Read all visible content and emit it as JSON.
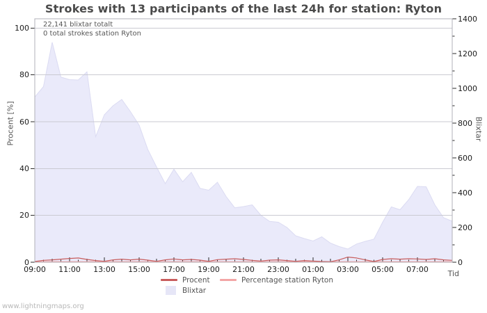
{
  "watermark": "www.lightningmaps.org",
  "chart_data": {
    "type": "area",
    "title": "Strokes with 13 participants of the last 24h for station: Ryton",
    "annotations": [
      "22,141 blixtar totalt",
      "0 total strokes station Ryton"
    ],
    "xlabel": "Tid",
    "ylabel_left": "Procent  [%]",
    "ylabel_right": "Blixtar",
    "x_tick_labels": [
      "09:00",
      "11:00",
      "13:00",
      "15:00",
      "17:00",
      "19:00",
      "21:00",
      "23:00",
      "01:00",
      "03:00",
      "05:00",
      "07:00"
    ],
    "y_left": {
      "min": 0,
      "max": 100,
      "ticks": [
        0,
        20,
        40,
        60,
        80,
        100
      ]
    },
    "y_right": {
      "min": 0,
      "max": 1400,
      "ticks": [
        0,
        200,
        400,
        600,
        800,
        1000,
        1200,
        1400
      ],
      "minor_step": 100
    },
    "grid": "horizontal",
    "legend_position": "bottom",
    "times": [
      "09:00",
      "09:30",
      "10:00",
      "10:30",
      "11:00",
      "11:30",
      "12:00",
      "12:30",
      "13:00",
      "13:30",
      "14:00",
      "14:30",
      "15:00",
      "15:30",
      "16:00",
      "16:30",
      "17:00",
      "17:30",
      "18:00",
      "18:30",
      "19:00",
      "19:30",
      "20:00",
      "20:30",
      "21:00",
      "21:30",
      "22:00",
      "22:30",
      "23:00",
      "23:30",
      "00:00",
      "00:30",
      "01:00",
      "01:30",
      "02:00",
      "02:30",
      "03:00",
      "03:30",
      "04:00",
      "04:30",
      "05:00",
      "05:30",
      "06:00",
      "06:30",
      "07:00",
      "07:30",
      "08:00",
      "08:30",
      "09:00"
    ],
    "series": [
      {
        "name": "Blixtar",
        "type": "area",
        "axis": "right",
        "color": "#eaeafa",
        "stroke": "#dbdbf2",
        "values": [
          950,
          1010,
          1265,
          1065,
          1050,
          1048,
          1095,
          722,
          848,
          900,
          936,
          866,
          788,
          648,
          548,
          452,
          535,
          463,
          517,
          425,
          414,
          460,
          378,
          313,
          320,
          330,
          270,
          235,
          230,
          200,
          152,
          136,
          122,
          146,
          110,
          90,
          76,
          105,
          120,
          133,
          230,
          318,
          302,
          360,
          436,
          434,
          330,
          256,
          236
        ]
      },
      {
        "name": "Procent",
        "type": "line",
        "axis": "left",
        "color": "#c85c5c",
        "values": [
          0.3,
          0.8,
          1.0,
          1.3,
          1.6,
          1.8,
          1.2,
          0.7,
          0.4,
          1.0,
          1.3,
          1.0,
          1.3,
          0.9,
          0.4,
          1.0,
          1.4,
          1.0,
          1.2,
          0.9,
          0.4,
          1.1,
          1.3,
          1.5,
          1.2,
          0.8,
          0.5,
          0.9,
          1.0,
          0.7,
          0.4,
          0.7,
          0.5,
          0.3,
          0.2,
          1.0,
          2.2,
          1.8,
          1.0,
          0.3,
          1.2,
          1.5,
          1.3,
          1.5,
          1.4,
          1.2,
          1.5,
          1.0,
          0.8
        ]
      },
      {
        "name": "Percentage station Ryton",
        "type": "line",
        "axis": "left",
        "color": "#f3a6a6",
        "values": [
          0,
          0,
          0,
          0,
          0,
          0,
          0,
          0,
          0,
          0,
          0,
          0,
          0,
          0,
          0,
          0,
          0,
          0,
          0,
          0,
          0,
          0,
          0,
          0,
          0,
          0,
          0,
          0,
          0,
          0,
          0,
          0,
          0,
          0,
          0,
          0,
          0,
          0,
          0,
          0,
          0,
          0,
          0,
          0,
          0,
          0,
          0,
          0,
          0
        ]
      }
    ],
    "legend": [
      {
        "label": "Procent",
        "color": "#c85c5c",
        "swatch": "line"
      },
      {
        "label": "Percentage station Ryton",
        "color": "#f3a6a6",
        "swatch": "line"
      },
      {
        "label": "Blixtar",
        "color": "#e6e6f7",
        "swatch": "square"
      }
    ],
    "colors": {
      "grid": "#cacad2",
      "frame": "#b0b0b8",
      "tick": "#2a2a2a",
      "title": "#4a4a4a",
      "text": "#555555",
      "watermark": "#b8b8b8"
    }
  }
}
